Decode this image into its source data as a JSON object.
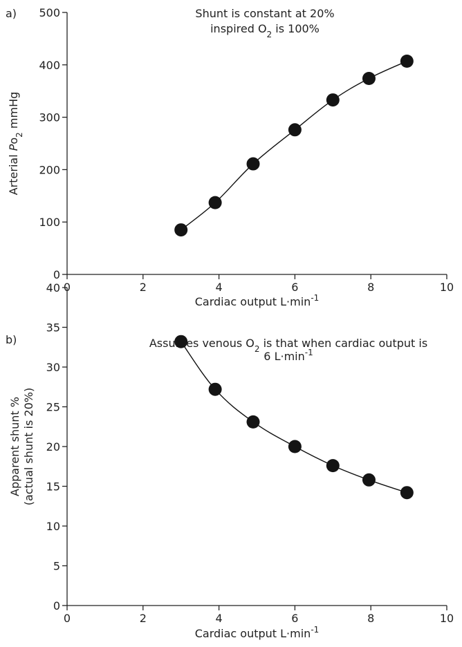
{
  "chart_data": [
    {
      "type": "line",
      "panel_label": "a)",
      "annotation": [
        {
          "text": "Shunt is constant at 20%"
        },
        {
          "text": "inspired O",
          "sub": "2",
          "after": " is 100%"
        }
      ],
      "ylabel": {
        "text": "Arterial ",
        "italic": "P",
        "mid": "o",
        "sub": "2",
        "after": " mmHg"
      },
      "xlabel": {
        "text": "Cardiac output L·min",
        "sup": "-1"
      },
      "xlim": [
        0,
        10
      ],
      "ylim": [
        0,
        500
      ],
      "x_ticks": [
        "0",
        "2",
        "4",
        "6",
        "8",
        "10"
      ],
      "y_ticks": [
        "0",
        "100",
        "200",
        "300",
        "400",
        "500"
      ],
      "x": [
        3,
        3.9,
        4.9,
        6,
        7,
        7.95,
        8.95
      ],
      "y": [
        85,
        137,
        211,
        276,
        333,
        374,
        407
      ],
      "marker": "filled-circle",
      "color": "#141414",
      "grid": false
    },
    {
      "type": "line",
      "panel_label": "b)",
      "annotation": [
        {
          "text": "Assumes venous O",
          "sub": "2",
          "after": " is that when cardiac output is"
        },
        {
          "text": "6 L·min",
          "sup": "-1"
        }
      ],
      "ylabel": [
        {
          "text": "Apparent shunt %"
        },
        {
          "text": "(actual shunt is 20%)"
        }
      ],
      "xlabel": {
        "text": "Cardiac output L·min",
        "sup": "-1"
      },
      "xlim": [
        0,
        10
      ],
      "ylim": [
        0,
        40
      ],
      "x_ticks": [
        "0",
        "2",
        "4",
        "6",
        "8",
        "10"
      ],
      "y_ticks": [
        "0",
        "5",
        "10",
        "15",
        "20",
        "25",
        "30",
        "35",
        "40"
      ],
      "x": [
        3,
        3.9,
        4.9,
        6,
        7,
        7.95,
        8.95
      ],
      "y": [
        33.2,
        27.2,
        23.1,
        20.0,
        17.6,
        15.8,
        14.2
      ],
      "marker": "filled-circle",
      "color": "#141414",
      "grid": false
    }
  ]
}
